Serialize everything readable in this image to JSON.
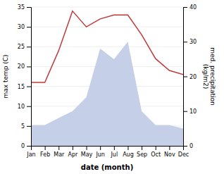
{
  "chart_data": {
    "type": "line",
    "categories": [
      "Jan",
      "Feb",
      "Mar",
      "Apr",
      "May",
      "Jun",
      "Jul",
      "Aug",
      "Sep",
      "Oct",
      "Nov",
      "Dec"
    ],
    "series": [
      {
        "type": "area",
        "color": "#c5cfe8",
        "axis": "y2",
        "values": [
          6,
          6,
          8,
          10,
          14,
          28,
          25,
          30,
          10,
          6,
          6,
          5
        ]
      },
      {
        "type": "line",
        "color": "#c0393b",
        "values": [
          16,
          16,
          24,
          34,
          30,
          32,
          33,
          33,
          28,
          22,
          19,
          18
        ]
      }
    ],
    "x_label": "date (month)",
    "y_label": "max temp (C)",
    "y2_label": "med. precipitation\n(kg/m2)",
    "ylim": [
      0,
      35
    ],
    "yticks": [
      0,
      5,
      10,
      15,
      20,
      25,
      30,
      35
    ],
    "y2lim": [
      0,
      40
    ],
    "y2ticks": [
      0,
      10,
      20,
      30,
      40
    ],
    "grid": "y"
  }
}
